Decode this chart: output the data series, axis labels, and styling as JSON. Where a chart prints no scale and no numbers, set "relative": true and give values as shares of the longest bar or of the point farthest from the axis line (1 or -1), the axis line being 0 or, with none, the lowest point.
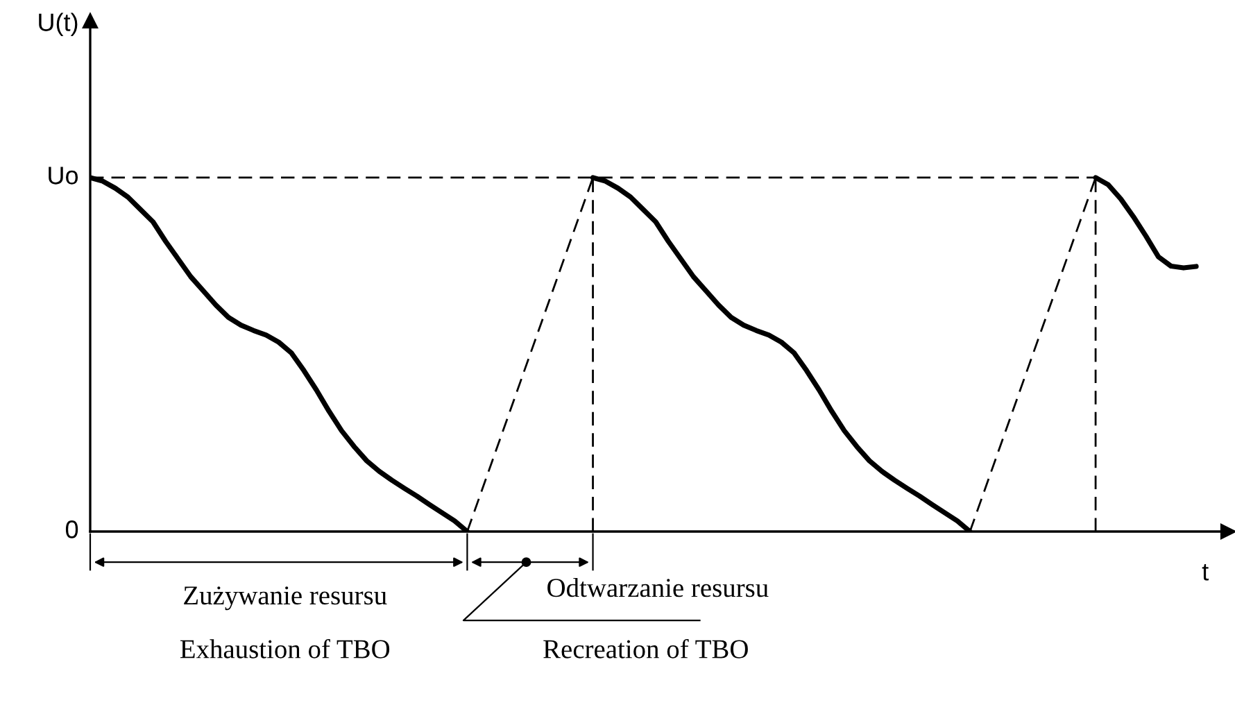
{
  "chart_data": {
    "type": "line",
    "relative": true,
    "xlabel": "t",
    "categories": [
      null,
      null,
      null,
      null,
      null,
      null,
      null,
      null,
      null,
      null,
      null,
      null,
      null,
      null,
      null,
      null,
      null,
      null,
      null,
      null,
      null,
      null,
      null,
      null,
      null,
      null,
      null,
      null,
      null,
      null,
      null,
      null,
      null,
      null,
      null,
      null,
      null,
      null,
      null,
      null,
      null,
      null,
      null,
      null,
      null,
      null,
      null,
      null,
      null,
      null,
      null,
      null,
      null,
      null,
      null,
      null,
      null,
      null,
      null,
      null,
      null,
      null,
      null,
      null,
      null,
      null,
      null,
      null,
      null,
      null,
      null,
      null,
      null,
      null,
      null,
      null,
      null,
      null,
      null,
      null,
      null,
      null,
      null,
      null,
      null,
      null,
      null,
      null,
      null
    ],
    "series": [
      {
        "color": "#000000",
        "line_style": "solid",
        "values": [
          1.0,
          0.99,
          0.97,
          0.945,
          0.91,
          0.875,
          0.82,
          0.77,
          0.72,
          0.68,
          0.64,
          0.605,
          0.583,
          0.568,
          0.555,
          0.535,
          0.505,
          0.455,
          0.4,
          0.34,
          0.285,
          0.24,
          0.2,
          0.17,
          0.145,
          0.122,
          0.1,
          0.076,
          0.053,
          0.03,
          0,
          null,
          null,
          null,
          null,
          null,
          null,
          null,
          null,
          null,
          null,
          null,
          null,
          null,
          null,
          null,
          null,
          null,
          null,
          null,
          null,
          null,
          null,
          null,
          null,
          null,
          null,
          null,
          null,
          null,
          null,
          null,
          null,
          null,
          null,
          null,
          null,
          null,
          null,
          null,
          null,
          null,
          null,
          null,
          null,
          null,
          null,
          null,
          null,
          null,
          null,
          null,
          null,
          null,
          null,
          null,
          null,
          null,
          null
        ]
      },
      {
        "color": "#000000",
        "line_style": "dashed",
        "values": [
          null,
          null,
          null,
          null,
          null,
          null,
          null,
          null,
          null,
          null,
          null,
          null,
          null,
          null,
          null,
          null,
          null,
          null,
          null,
          null,
          null,
          null,
          null,
          null,
          null,
          null,
          null,
          null,
          null,
          null,
          0,
          0.1,
          0.2,
          0.3,
          0.4,
          0.5,
          0.6,
          0.7,
          0.8,
          0.9,
          1.0,
          null,
          null,
          null,
          null,
          null,
          null,
          null,
          null,
          null,
          null,
          null,
          null,
          null,
          null,
          null,
          null,
          null,
          null,
          null,
          null,
          null,
          null,
          null,
          null,
          null,
          null,
          null,
          null,
          null,
          null,
          null,
          null,
          null,
          null,
          null,
          null,
          null,
          null,
          null,
          null,
          null,
          null,
          null,
          null,
          null,
          null,
          null,
          null
        ]
      },
      {
        "color": "#000000",
        "line_style": "solid",
        "values": [
          null,
          null,
          null,
          null,
          null,
          null,
          null,
          null,
          null,
          null,
          null,
          null,
          null,
          null,
          null,
          null,
          null,
          null,
          null,
          null,
          null,
          null,
          null,
          null,
          null,
          null,
          null,
          null,
          null,
          null,
          null,
          null,
          null,
          null,
          null,
          null,
          null,
          null,
          null,
          null,
          1.0,
          0.99,
          0.97,
          0.945,
          0.91,
          0.875,
          0.82,
          0.77,
          0.72,
          0.68,
          0.64,
          0.605,
          0.583,
          0.568,
          0.555,
          0.535,
          0.505,
          0.455,
          0.4,
          0.34,
          0.285,
          0.24,
          0.2,
          0.17,
          0.145,
          0.122,
          0.1,
          0.076,
          0.053,
          0.03,
          0,
          null,
          null,
          null,
          null,
          null,
          null,
          null,
          null,
          null,
          null,
          null,
          null,
          null,
          null,
          null,
          null,
          null,
          null
        ]
      },
      {
        "color": "#000000",
        "line_style": "dashed",
        "values": [
          null,
          null,
          null,
          null,
          null,
          null,
          null,
          null,
          null,
          null,
          null,
          null,
          null,
          null,
          null,
          null,
          null,
          null,
          null,
          null,
          null,
          null,
          null,
          null,
          null,
          null,
          null,
          null,
          null,
          null,
          null,
          null,
          null,
          null,
          null,
          null,
          null,
          null,
          null,
          null,
          null,
          null,
          null,
          null,
          null,
          null,
          null,
          null,
          null,
          null,
          null,
          null,
          null,
          null,
          null,
          null,
          null,
          null,
          null,
          null,
          null,
          null,
          null,
          null,
          null,
          null,
          null,
          null,
          null,
          null,
          0,
          0.1,
          0.2,
          0.3,
          0.4,
          0.5,
          0.6,
          0.7,
          0.8,
          0.9,
          1.0,
          null,
          null,
          null,
          null,
          null,
          null,
          null,
          null
        ]
      },
      {
        "color": "#000000",
        "line_style": "solid",
        "values": [
          null,
          null,
          null,
          null,
          null,
          null,
          null,
          null,
          null,
          null,
          null,
          null,
          null,
          null,
          null,
          null,
          null,
          null,
          null,
          null,
          null,
          null,
          null,
          null,
          null,
          null,
          null,
          null,
          null,
          null,
          null,
          null,
          null,
          null,
          null,
          null,
          null,
          null,
          null,
          null,
          null,
          null,
          null,
          null,
          null,
          null,
          null,
          null,
          null,
          null,
          null,
          null,
          null,
          null,
          null,
          null,
          null,
          null,
          null,
          null,
          null,
          null,
          null,
          null,
          null,
          null,
          null,
          null,
          null,
          null,
          null,
          null,
          null,
          null,
          null,
          null,
          null,
          null,
          null,
          null,
          1.0,
          0.98,
          0.94,
          0.89,
          0.835,
          0.776,
          0.75,
          0.745,
          0.749
        ]
      }
    ],
    "annotations": [
      "U(t)",
      "Uo",
      "0",
      "Zużywanie resursu",
      "Exhaustion of TBO",
      "Odtwarzanie resursu",
      "Recreation of TBO"
    ]
  }
}
